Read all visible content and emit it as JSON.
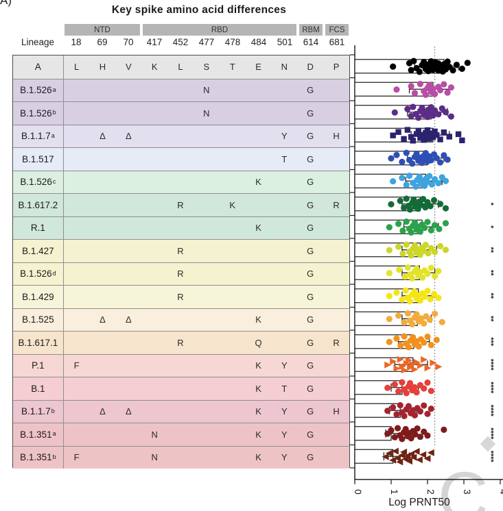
{
  "panel_label": "A)",
  "title": "Key spike amino acid differences",
  "table": {
    "lineage_header": "Lineage",
    "regions": [
      {
        "label": "NTD",
        "start": 0,
        "end": 2
      },
      {
        "label": "RBD",
        "start": 3,
        "end": 8
      },
      {
        "label": "RBM",
        "start": 9,
        "end": 9
      },
      {
        "label": "FCS",
        "start": 10,
        "end": 10
      }
    ],
    "positions": [
      "18",
      "69",
      "70",
      "417",
      "452",
      "477",
      "478",
      "484",
      "501",
      "614",
      "681"
    ]
  },
  "chart_data": {
    "type": "bar",
    "orientation": "horizontal",
    "title": "Key spike amino acid differences",
    "xlabel": "Log PRNT50",
    "ylabel": "",
    "xlim": [
      0,
      4
    ],
    "x_ticks": [
      "0",
      "1",
      "2",
      "3",
      "4"
    ],
    "dotted_reference_line": 2.2,
    "grid": false,
    "legend": "none",
    "rows": [
      {
        "name": "A",
        "sup": "",
        "bg": "#e6e6e6",
        "color": "#000000",
        "marker": "circle",
        "cells": {
          "18": "L",
          "69": "H",
          "70": "V",
          "417": "K",
          "452": "L",
          "477": "S",
          "478": "T",
          "484": "E",
          "501": "N",
          "614": "D",
          "681": "P"
        },
        "bar": 2.45,
        "err": [
          1.65,
          2.85
        ],
        "sig": "",
        "points": [
          1.05,
          1.5,
          1.55,
          1.62,
          1.7,
          1.78,
          1.85,
          1.9,
          1.95,
          2.0,
          2.02,
          2.05,
          2.1,
          2.1,
          2.15,
          2.18,
          2.2,
          2.22,
          2.25,
          2.3,
          2.3,
          2.35,
          2.4,
          2.42,
          2.45,
          2.5,
          2.55,
          2.6,
          2.7,
          2.8,
          2.95,
          3.1
        ]
      },
      {
        "name": "B.1.526",
        "sup": "a",
        "bg": "#d8cfe2",
        "color": "#b84ea5",
        "marker": "circle",
        "cells": {
          "477": "N",
          "614": "G"
        },
        "bar": 2.15,
        "err": [
          1.5,
          2.6
        ],
        "sig": "",
        "points": [
          1.15,
          1.55,
          1.65,
          1.8,
          1.9,
          1.95,
          2.0,
          2.05,
          2.1,
          2.15,
          2.2,
          2.3,
          2.35,
          2.45,
          2.55,
          2.65
        ]
      },
      {
        "name": "B.1.526",
        "sup": "b",
        "bg": "#d8cfe2",
        "color": "#5c2d87",
        "marker": "circle",
        "cells": {
          "477": "N",
          "614": "G"
        },
        "bar": 2.1,
        "err": [
          1.45,
          2.55
        ],
        "sig": "",
        "points": [
          1.1,
          1.45,
          1.55,
          1.6,
          1.68,
          1.75,
          1.8,
          1.85,
          1.9,
          1.95,
          2.0,
          2.02,
          2.05,
          2.1,
          2.15,
          2.2,
          2.3,
          2.4,
          2.5,
          2.65
        ]
      },
      {
        "name": "B.1.1.7",
        "sup": "a",
        "bg": "#e2dfef",
        "color": "#2a2370",
        "marker": "square",
        "cells": {
          "69": "Δ",
          "70": "Δ",
          "501": "Y",
          "614": "G",
          "681": "H"
        },
        "bar": 2.15,
        "err": [
          1.55,
          2.6
        ],
        "sig": "",
        "points": [
          1.05,
          1.2,
          1.35,
          1.45,
          1.55,
          1.6,
          1.7,
          1.75,
          1.8,
          1.85,
          1.9,
          1.95,
          2.0,
          2.0,
          2.05,
          2.1,
          2.15,
          2.2,
          2.25,
          2.35,
          2.45,
          2.6,
          2.85,
          2.95
        ]
      },
      {
        "name": "B.1.517",
        "sup": "",
        "bg": "#e6ebf8",
        "color": "#2e4fb5",
        "marker": "circle",
        "cells": {
          "501": "T",
          "614": "G"
        },
        "bar": 2.0,
        "err": [
          1.45,
          2.45
        ],
        "sig": "",
        "points": [
          1.0,
          1.15,
          1.3,
          1.42,
          1.5,
          1.58,
          1.65,
          1.7,
          1.75,
          1.8,
          1.85,
          1.9,
          1.92,
          1.95,
          2.0,
          2.05,
          2.1,
          2.18,
          2.25,
          2.35,
          2.45,
          2.55
        ]
      },
      {
        "name": "B.1.526",
        "sup": "c",
        "bg": "#dcf0e1",
        "color": "#3da4e0",
        "marker": "circle",
        "cells": {
          "484": "K",
          "614": "G"
        },
        "bar": 1.95,
        "err": [
          1.4,
          2.4
        ],
        "sig": "",
        "points": [
          1.05,
          1.3,
          1.42,
          1.5,
          1.6,
          1.68,
          1.72,
          1.78,
          1.82,
          1.88,
          1.92,
          1.96,
          2.0,
          2.05,
          2.12,
          2.2,
          2.3,
          2.4,
          2.5
        ]
      },
      {
        "name": "B.1.617.2",
        "sup": "",
        "bg": "#d0e7d9",
        "color": "#156b38",
        "marker": "circle",
        "cells": {
          "452": "R",
          "478": "K",
          "614": "G",
          "681": "R"
        },
        "bar": 1.8,
        "err": [
          1.3,
          2.3
        ],
        "sig": "*",
        "points": [
          1.0,
          1.25,
          1.35,
          1.42,
          1.48,
          1.52,
          1.58,
          1.62,
          1.66,
          1.7,
          1.74,
          1.78,
          1.82,
          1.88,
          1.94,
          2.0,
          2.08,
          2.18,
          2.35,
          2.5
        ]
      },
      {
        "name": "R.1",
        "sup": "",
        "bg": "#d0e8d9",
        "color": "#2aa34c",
        "marker": "circle",
        "cells": {
          "484": "K",
          "614": "G"
        },
        "bar": 1.85,
        "err": [
          1.35,
          2.3
        ],
        "sig": "*",
        "points": [
          0.95,
          1.2,
          1.32,
          1.42,
          1.5,
          1.55,
          1.6,
          1.65,
          1.7,
          1.75,
          1.8,
          1.85,
          1.92,
          2.0,
          2.1,
          2.2,
          2.32,
          2.5
        ]
      },
      {
        "name": "B.1.427",
        "sup": "",
        "bg": "#f5f2d2",
        "color": "#cdd62b",
        "marker": "circle",
        "cells": {
          "452": "R",
          "614": "G"
        },
        "bar": 1.8,
        "err": [
          1.3,
          2.25
        ],
        "sig": "**",
        "points": [
          0.95,
          1.2,
          1.32,
          1.42,
          1.5,
          1.55,
          1.6,
          1.65,
          1.7,
          1.75,
          1.8,
          1.85,
          1.9,
          1.95,
          2.02,
          2.1,
          2.2,
          2.35,
          2.5
        ]
      },
      {
        "name": "B.1.526",
        "sup": "d",
        "bg": "#f5f2d0",
        "color": "#e3e32b",
        "marker": "circle",
        "cells": {
          "452": "R",
          "614": "G"
        },
        "bar": 1.78,
        "err": [
          1.3,
          2.2
        ],
        "sig": "**",
        "points": [
          0.95,
          1.22,
          1.38,
          1.46,
          1.52,
          1.58,
          1.64,
          1.7,
          1.75,
          1.8,
          1.86,
          1.92,
          2.0,
          2.1,
          2.2,
          2.3
        ]
      },
      {
        "name": "B.1.429",
        "sup": "",
        "bg": "#f7f5d9",
        "color": "#f4e616",
        "marker": "circle",
        "cells": {
          "452": "R",
          "614": "G"
        },
        "bar": 1.75,
        "err": [
          1.3,
          2.15
        ],
        "sig": "**",
        "points": [
          0.95,
          1.15,
          1.3,
          1.4,
          1.46,
          1.52,
          1.58,
          1.64,
          1.7,
          1.75,
          1.8,
          1.86,
          1.92,
          2.0,
          2.08,
          2.18,
          2.3
        ]
      },
      {
        "name": "B.1.525",
        "sup": "",
        "bg": "#faeedd",
        "color": "#f3ab3c",
        "marker": "circle",
        "cells": {
          "69": "Δ",
          "70": "Δ",
          "484": "K",
          "614": "G"
        },
        "bar": 1.72,
        "err": [
          1.3,
          2.1
        ],
        "sig": "**",
        "points": [
          0.95,
          1.2,
          1.36,
          1.46,
          1.52,
          1.58,
          1.65,
          1.7,
          1.76,
          1.82,
          1.9,
          1.96,
          2.06,
          2.2,
          2.4
        ]
      },
      {
        "name": "B.1.617.1",
        "sup": "",
        "bg": "#f6e4cc",
        "color": "#f2911f",
        "marker": "circle",
        "cells": {
          "452": "R",
          "484": "Q",
          "614": "G",
          "681": "R"
        },
        "bar": 1.62,
        "err": [
          1.2,
          2.05
        ],
        "sig": "***",
        "points": [
          0.95,
          1.15,
          1.26,
          1.36,
          1.42,
          1.48,
          1.54,
          1.6,
          1.65,
          1.7,
          1.76,
          1.82,
          1.9,
          2.0,
          2.1,
          2.25
        ]
      },
      {
        "name": "P.1",
        "sup": "",
        "bg": "#f7d7d4",
        "color": "#ec6726",
        "marker": "triangle-right",
        "cells": {
          "18": "F",
          "484": "K",
          "501": "Y",
          "614": "G"
        },
        "bar": 1.6,
        "err": [
          1.1,
          2.0
        ],
        "sig": "****",
        "points": [
          0.9,
          1.05,
          1.15,
          1.25,
          1.3,
          1.36,
          1.42,
          1.48,
          1.52,
          1.58,
          1.64,
          1.7,
          1.8,
          1.9,
          2.0,
          2.15,
          2.3
        ]
      },
      {
        "name": "B.1",
        "sup": "",
        "bg": "#f4ced2",
        "color": "#e5403a",
        "marker": "circle",
        "cells": {
          "484": "K",
          "501": "T",
          "614": "G"
        },
        "bar": 1.3,
        "err": [
          1.0,
          1.75
        ],
        "sig": "****",
        "points": [
          0.9,
          1.1,
          1.2,
          1.3,
          1.36,
          1.42,
          1.48,
          1.52,
          1.58,
          1.64,
          1.7,
          1.8,
          1.9,
          2.0,
          2.1
        ]
      },
      {
        "name": "B.1.1.7",
        "sup": "b",
        "bg": "#edc6cf",
        "color": "#a3242e",
        "marker": "circle",
        "cells": {
          "69": "Δ",
          "70": "Δ",
          "484": "K",
          "501": "Y",
          "614": "G",
          "681": "H"
        },
        "bar": 1.25,
        "err": [
          0.95,
          1.7
        ],
        "sig": "****",
        "points": [
          0.9,
          1.05,
          1.15,
          1.25,
          1.3,
          1.36,
          1.42,
          1.48,
          1.54,
          1.6,
          1.65,
          1.72,
          1.8,
          1.9,
          2.0,
          2.1
        ]
      },
      {
        "name": "B.1.351",
        "sup": "a",
        "bg": "#eec3c8",
        "color": "#7e1c1c",
        "marker": "circle",
        "cells": {
          "417": "N",
          "484": "K",
          "501": "Y",
          "614": "G"
        },
        "bar": 1.0,
        "err": [
          0.85,
          1.55
        ],
        "sig": "****",
        "points": [
          0.9,
          1.0,
          1.1,
          1.18,
          1.24,
          1.3,
          1.35,
          1.4,
          1.45,
          1.5,
          1.55,
          1.6,
          1.66,
          1.72,
          1.8,
          1.9,
          2.0,
          2.45
        ]
      },
      {
        "name": "B.1.351",
        "sup": "b",
        "bg": "#eec3c6",
        "color": "#6e2312",
        "marker": "triangle-left",
        "cells": {
          "18": "F",
          "417": "N",
          "484": "K",
          "501": "Y",
          "614": "G"
        },
        "bar": 1.05,
        "err": [
          0.8,
          1.5
        ],
        "sig": "****",
        "points": [
          0.85,
          0.95,
          1.05,
          1.12,
          1.18,
          1.24,
          1.3,
          1.35,
          1.4,
          1.45,
          1.5,
          1.56,
          1.62,
          1.7,
          1.78,
          1.88,
          2.0,
          2.1
        ]
      }
    ]
  }
}
